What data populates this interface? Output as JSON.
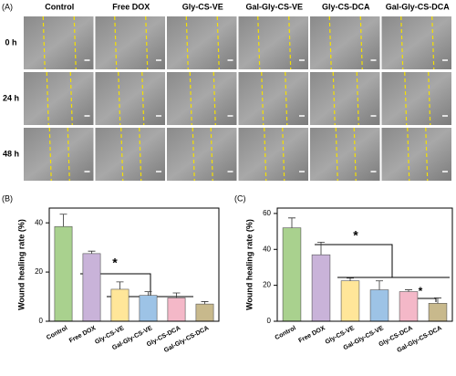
{
  "panel_a": {
    "label": "(A)",
    "columns": [
      "Control",
      "Free DOX",
      "Gly-CS-VE",
      "Gal-Gly-CS-VE",
      "Gly-CS-DCA",
      "Gal-Gly-CS-DCA"
    ],
    "rows": [
      "0 h",
      "24 h",
      "48 h"
    ]
  },
  "chart_data": [
    {
      "type": "bar",
      "panel_label": "(B)",
      "y_label": "Wound healing rate (%)",
      "categories": [
        "Control",
        "Free DOX",
        "Gly-CS-VE",
        "Gal-Gly-CS-VE",
        "Gly-CS-DCA",
        "Gal-Gly-CS-DCA"
      ],
      "values": [
        38.5,
        27.5,
        13,
        10.5,
        9.5,
        7
      ],
      "errors": [
        5,
        1,
        3,
        1.5,
        2,
        1
      ],
      "colors": [
        "#a9d18e",
        "#c9b3d9",
        "#ffe699",
        "#9dc3e6",
        "#f4b8c8",
        "#c8b98c"
      ],
      "ylim": [
        0,
        46
      ],
      "yticks": [
        0,
        20,
        40
      ],
      "annotations": [
        "*"
      ]
    },
    {
      "type": "bar",
      "panel_label": "(C)",
      "y_label": "Wound healing rate (%)",
      "categories": [
        "Control",
        "Free DOX",
        "Gly-CS-VE",
        "Gal-Gly-CS-VE",
        "Gly-CS-DCA",
        "Gal-Gly-CS-DCA"
      ],
      "values": [
        52,
        37,
        22.5,
        17.5,
        16.5,
        10
      ],
      "errors": [
        5.5,
        7,
        1.5,
        5,
        1,
        3
      ],
      "colors": [
        "#a9d18e",
        "#c9b3d9",
        "#ffe699",
        "#9dc3e6",
        "#f4b8c8",
        "#c8b98c"
      ],
      "ylim": [
        0,
        63
      ],
      "yticks": [
        0,
        20,
        40,
        60
      ],
      "annotations": [
        "*",
        "*"
      ]
    }
  ]
}
